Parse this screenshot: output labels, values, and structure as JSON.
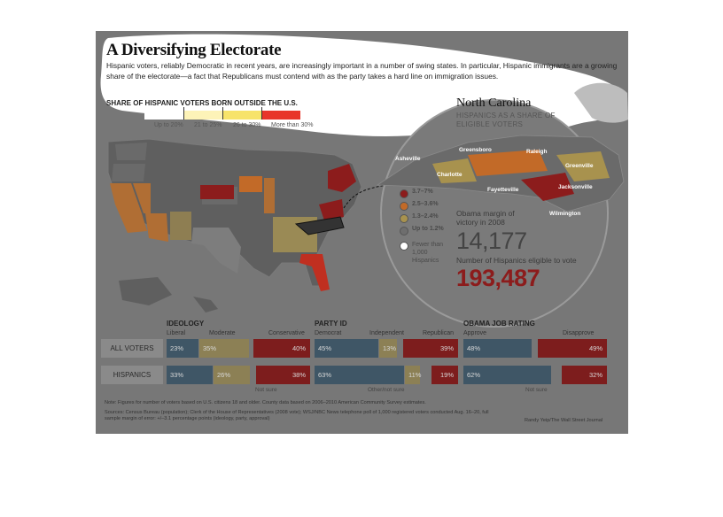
{
  "header": {
    "title": "A Diversifying Electorate",
    "intro": "Hispanic voters, reliably Democratic in recent years, are increasingly important in a number of swing states. In particular, Hispanic immigrants are a growing share of the electorate—a fact that Republicans must contend with as the party takes a hard line on immigration issues."
  },
  "us_legend": {
    "title": "SHARE OF HISPANIC VOTERS BORN OUTSIDE THE U.S.",
    "labels": [
      "Up to 20%",
      "21 to 25%",
      "26 to 30%",
      "More than 30%"
    ],
    "colors": [
      "#ffffff",
      "#fdf3b8",
      "#f7e36a",
      "#e8352a"
    ]
  },
  "nc": {
    "title": "North Carolina",
    "subtitle": "HISPANICS AS A SHARE OF ELIGIBLE VOTERS",
    "cities": [
      "Asheville",
      "Greensboro",
      "Raleigh",
      "Greenville",
      "Charlotte",
      "Fayetteville",
      "Jacksonville",
      "Wilmington"
    ],
    "legend": [
      {
        "label": "3.7–7%",
        "color": "#8c1c1c"
      },
      {
        "label": "2.5–3.6%",
        "color": "#c26a28"
      },
      {
        "label": "1.3–2.4%",
        "color": "#a8924e"
      },
      {
        "label": "Up to 1.2%",
        "color": "#6e6e6e"
      },
      {
        "label": "Fewer than 1,000 Hispanics",
        "color": "#ffffff"
      }
    ],
    "margin_label": "Obama margin of victory in 2008",
    "margin_value": "14,177",
    "eligible_label": "Number of Hispanics eligible to vote",
    "eligible_value": "193,487"
  },
  "chart_data": [
    {
      "type": "bar",
      "title": "IDEOLOGY",
      "categories": [
        "ALL VOTERS",
        "HISPANICS"
      ],
      "series": [
        {
          "name": "Liberal",
          "values": [
            23,
            33
          ]
        },
        {
          "name": "Moderate",
          "values": [
            35,
            26
          ]
        },
        {
          "name": "Conservative",
          "values": [
            40,
            38
          ]
        }
      ],
      "value_labels": [
        [
          "23%",
          "35%",
          "40%"
        ],
        [
          "33%",
          "26%",
          "38%"
        ]
      ],
      "note": "Not sure"
    },
    {
      "type": "bar",
      "title": "PARTY ID",
      "categories": [
        "ALL VOTERS",
        "HISPANICS"
      ],
      "series": [
        {
          "name": "Democrat",
          "values": [
            45,
            63
          ]
        },
        {
          "name": "Independent",
          "values": [
            13,
            11
          ]
        },
        {
          "name": "Republican",
          "values": [
            39,
            19
          ]
        }
      ],
      "value_labels": [
        [
          "45%",
          "13%",
          "39%"
        ],
        [
          "63%",
          "11%",
          "19%"
        ]
      ],
      "note": "Other/not sure"
    },
    {
      "type": "bar",
      "title": "OBAMA JOB RATING",
      "categories": [
        "ALL VOTERS",
        "HISPANICS"
      ],
      "series": [
        {
          "name": "Approve",
          "values": [
            48,
            62
          ]
        },
        {
          "name": "Disapprove",
          "values": [
            49,
            32
          ]
        }
      ],
      "value_labels": [
        [
          "48%",
          "49%"
        ],
        [
          "62%",
          "32%"
        ]
      ],
      "note": "Not sure"
    }
  ],
  "footer": {
    "note": "Note: Figures for number of voters based on U.S. citizens 18 and older. County data based on 2006–2010 American Community Survey estimates.",
    "sources": "Sources: Census Bureau (population); Clerk of the House of Representatives (2008 vote); WSJ/NBC News telephone poll of 1,000 registered voters conducted Aug. 16–20, full sample margin of error: +/–3.1 percentage points (ideology, party, approval)",
    "credit": "Randy Yeip/The Wall Street Journal"
  },
  "colors": {
    "blue": "#3f5666",
    "tan": "#8c8055",
    "red": "#7d1d1d",
    "frame_bg": "#777777"
  }
}
